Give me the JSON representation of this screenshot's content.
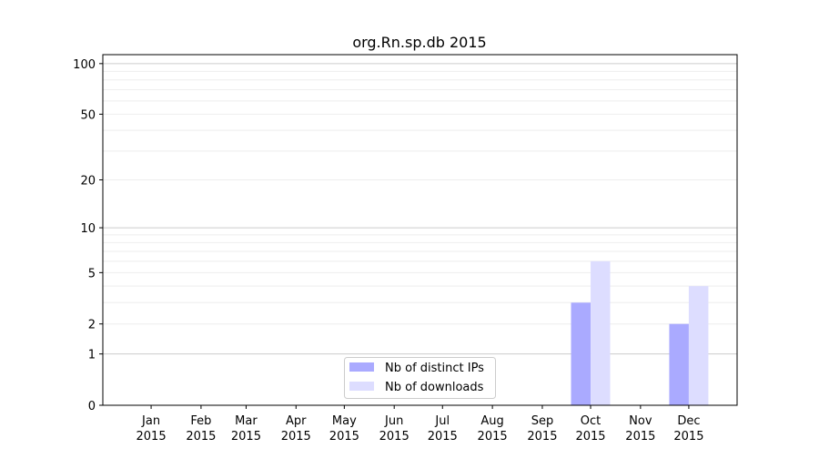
{
  "chart_data": {
    "type": "bar",
    "title": "org.Rn.sp.db 2015",
    "xlabel": "",
    "ylabel": "",
    "yscale": "log(1+y)",
    "ylim": [
      0,
      113
    ],
    "xlim": [
      "2014-12-02",
      "2015-12-31"
    ],
    "yticks": [
      0,
      1,
      2,
      5,
      10,
      20,
      50,
      100
    ],
    "grid": true,
    "legend_position": "bottom-center",
    "categories": [
      "Jan",
      "Feb",
      "Mar",
      "Apr",
      "May",
      "Jun",
      "Jul",
      "Aug",
      "Sep",
      "Oct",
      "Nov",
      "Dec"
    ],
    "category_dates": [
      "2015-01-01",
      "2015-02-01",
      "2015-03-01",
      "2015-04-01",
      "2015-05-01",
      "2015-06-01",
      "2015-07-01",
      "2015-08-01",
      "2015-09-01",
      "2015-10-01",
      "2015-11-01",
      "2015-12-01"
    ],
    "year_label": "2015",
    "series": [
      {
        "name": "Nb of distinct IPs",
        "color": "#aaaaff",
        "values": [
          0,
          0,
          0,
          0,
          0,
          0,
          0,
          0,
          0,
          3,
          0,
          2
        ]
      },
      {
        "name": "Nb of downloads",
        "color": "#ddddff",
        "values": [
          0,
          0,
          0,
          0,
          0,
          0,
          0,
          0,
          0,
          6,
          0,
          4
        ]
      }
    ]
  }
}
